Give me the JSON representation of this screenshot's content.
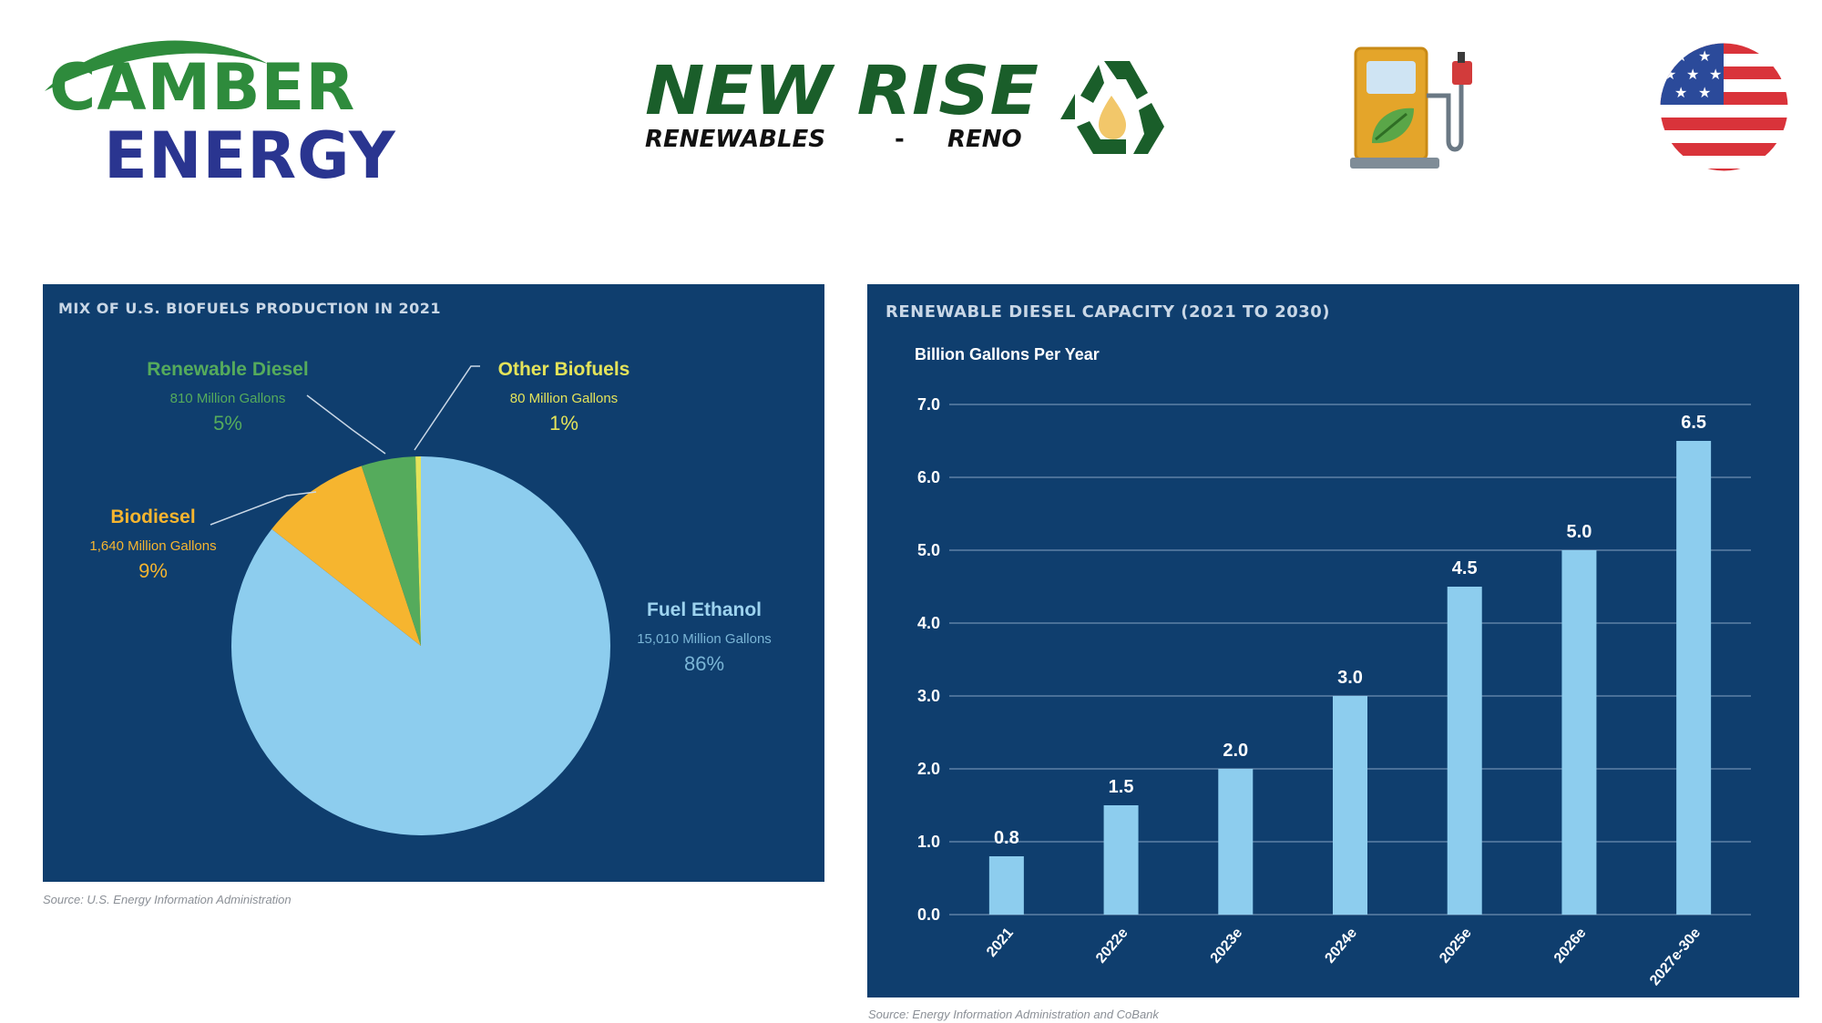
{
  "header": {
    "camber_logo_line1": "CAMBER",
    "camber_logo_line2": "ENERGY",
    "newrise_logo_title": "NEW RISE",
    "newrise_logo_sub_left": "RENEWABLES",
    "newrise_logo_sub_sep": "-",
    "newrise_logo_sub_right": "RENO",
    "icons": [
      "recycle-icon",
      "biofuel-pump-icon",
      "us-flag-icon"
    ]
  },
  "colors": {
    "panel_bg": "#0f3e6e",
    "ethanol": "#8dcdee",
    "biodiesel": "#f6b52f",
    "renewable_diesel": "#55ab5c",
    "other": "#e4e35a",
    "bar": "#8dcdee",
    "camber_green": "#2e8b3c",
    "camber_blue": "#2a3590",
    "newrise_green": "#1a5e2a"
  },
  "chart_data": [
    {
      "type": "pie",
      "title": "MIX OF U.S. BIOFUELS PRODUCTION IN 2021",
      "source": "Source: U.S. Energy Information Administration",
      "slices": [
        {
          "name": "Fuel Ethanol",
          "detail": "15,010 Million Gallons",
          "percent_label": "86%",
          "value": 15010,
          "color": "#8dcdee"
        },
        {
          "name": "Biodiesel",
          "detail": "1,640 Million Gallons",
          "percent_label": "9%",
          "value": 1640,
          "color": "#f6b52f"
        },
        {
          "name": "Renewable Diesel",
          "detail": "810 Million Gallons",
          "percent_label": "5%",
          "value": 810,
          "color": "#55ab5c"
        },
        {
          "name": "Other Biofuels",
          "detail": "80 Million Gallons",
          "percent_label": "1%",
          "value": 80,
          "color": "#e4e35a"
        }
      ]
    },
    {
      "type": "bar",
      "title": "RENEWABLE DIESEL CAPACITY (2021 TO 2030)",
      "ylabel": "Billion Gallons Per Year",
      "source": "Source: Energy Information Administration and CoBank",
      "categories": [
        "2021",
        "2022e",
        "2023e",
        "2024e",
        "2025e",
        "2026e",
        "2027e-30e"
      ],
      "values": [
        0.8,
        1.5,
        2.0,
        3.0,
        4.5,
        5.0,
        6.5
      ],
      "value_labels": [
        "0.8",
        "1.5",
        "2.0",
        "3.0",
        "4.5",
        "5.0",
        "6.5"
      ],
      "yticks": [
        "0.0",
        "1.0",
        "2.0",
        "3.0",
        "4.0",
        "5.0",
        "6.0",
        "7.0"
      ],
      "ylim": [
        0,
        7
      ],
      "grid": true
    }
  ]
}
